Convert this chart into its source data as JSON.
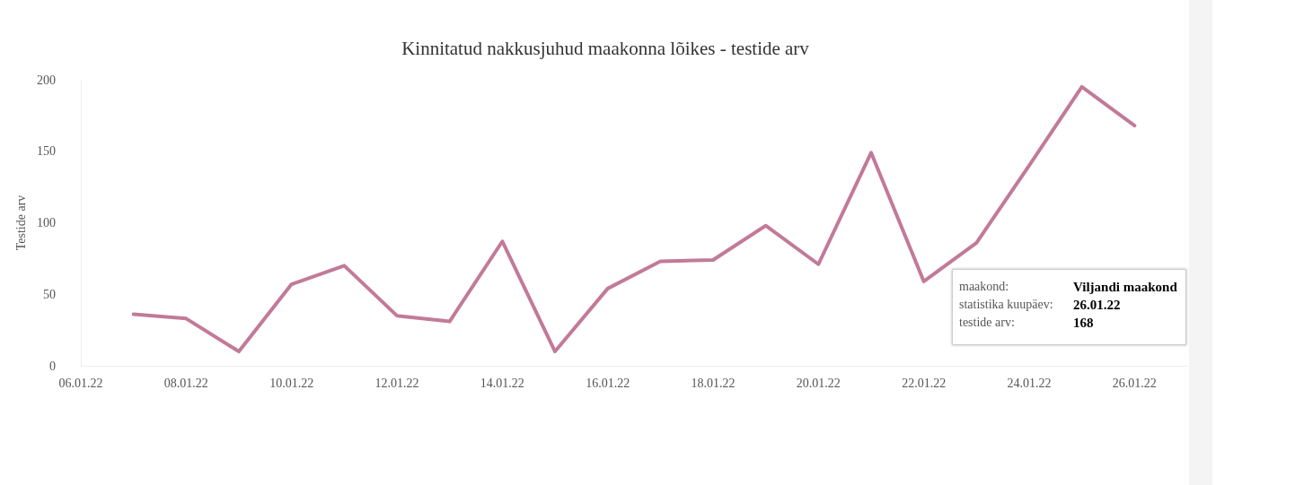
{
  "chart_data": {
    "type": "line",
    "title": "Kinnitatud nakkusjuhud maakonna lõikes - testide arv",
    "ylabel": "Testide arv",
    "x": [
      "--01-07",
      "--01-08",
      "--01-09",
      "--01-10",
      "--01-11",
      "--01-12",
      "--01-13",
      "--01-14",
      "--01-15",
      "--01-16",
      "--01-17",
      "--01-18",
      "--01-19",
      "--01-20",
      "--01-21",
      "--01-22",
      "--01-23",
      "--01-24",
      "--01-25",
      "--01-26"
    ],
    "series": [
      {
        "color": "#c27a98",
        "values": [
          36,
          33,
          10,
          57,
          70,
          35,
          31,
          87,
          10,
          54,
          73,
          74,
          98,
          71,
          149,
          59,
          86,
          140,
          195,
          168
        ]
      }
    ],
    "xlim": [
      "--01-06",
      "--01-27"
    ],
    "xticks": [
      {
        "value": "--01-06",
        "label": "06.01.22"
      },
      {
        "value": "--01-08",
        "label": "08.01.22"
      },
      {
        "value": "--01-10",
        "label": "10.01.22"
      },
      {
        "value": "--01-12",
        "label": "12.01.22"
      },
      {
        "value": "--01-14",
        "label": "14.01.22"
      },
      {
        "value": "--01-16",
        "label": "16.01.22"
      },
      {
        "value": "--01-18",
        "label": "18.01.22"
      },
      {
        "value": "--01-20",
        "label": "20.01.22"
      },
      {
        "value": "--01-22",
        "label": "22.01.22"
      },
      {
        "value": "--01-24",
        "label": "24.01.22"
      },
      {
        "value": "--01-26",
        "label": "26.01.22"
      }
    ],
    "ylim": [
      0,
      200
    ],
    "yticks": [
      0,
      50,
      100,
      150,
      200
    ],
    "grid": false,
    "marker": "none",
    "line_style": "solid",
    "annotations": [
      "maakond:",
      "Viljandi maakond",
      "statistika kuupäev:",
      "26.01.22",
      "testide arv:",
      "168"
    ]
  }
}
